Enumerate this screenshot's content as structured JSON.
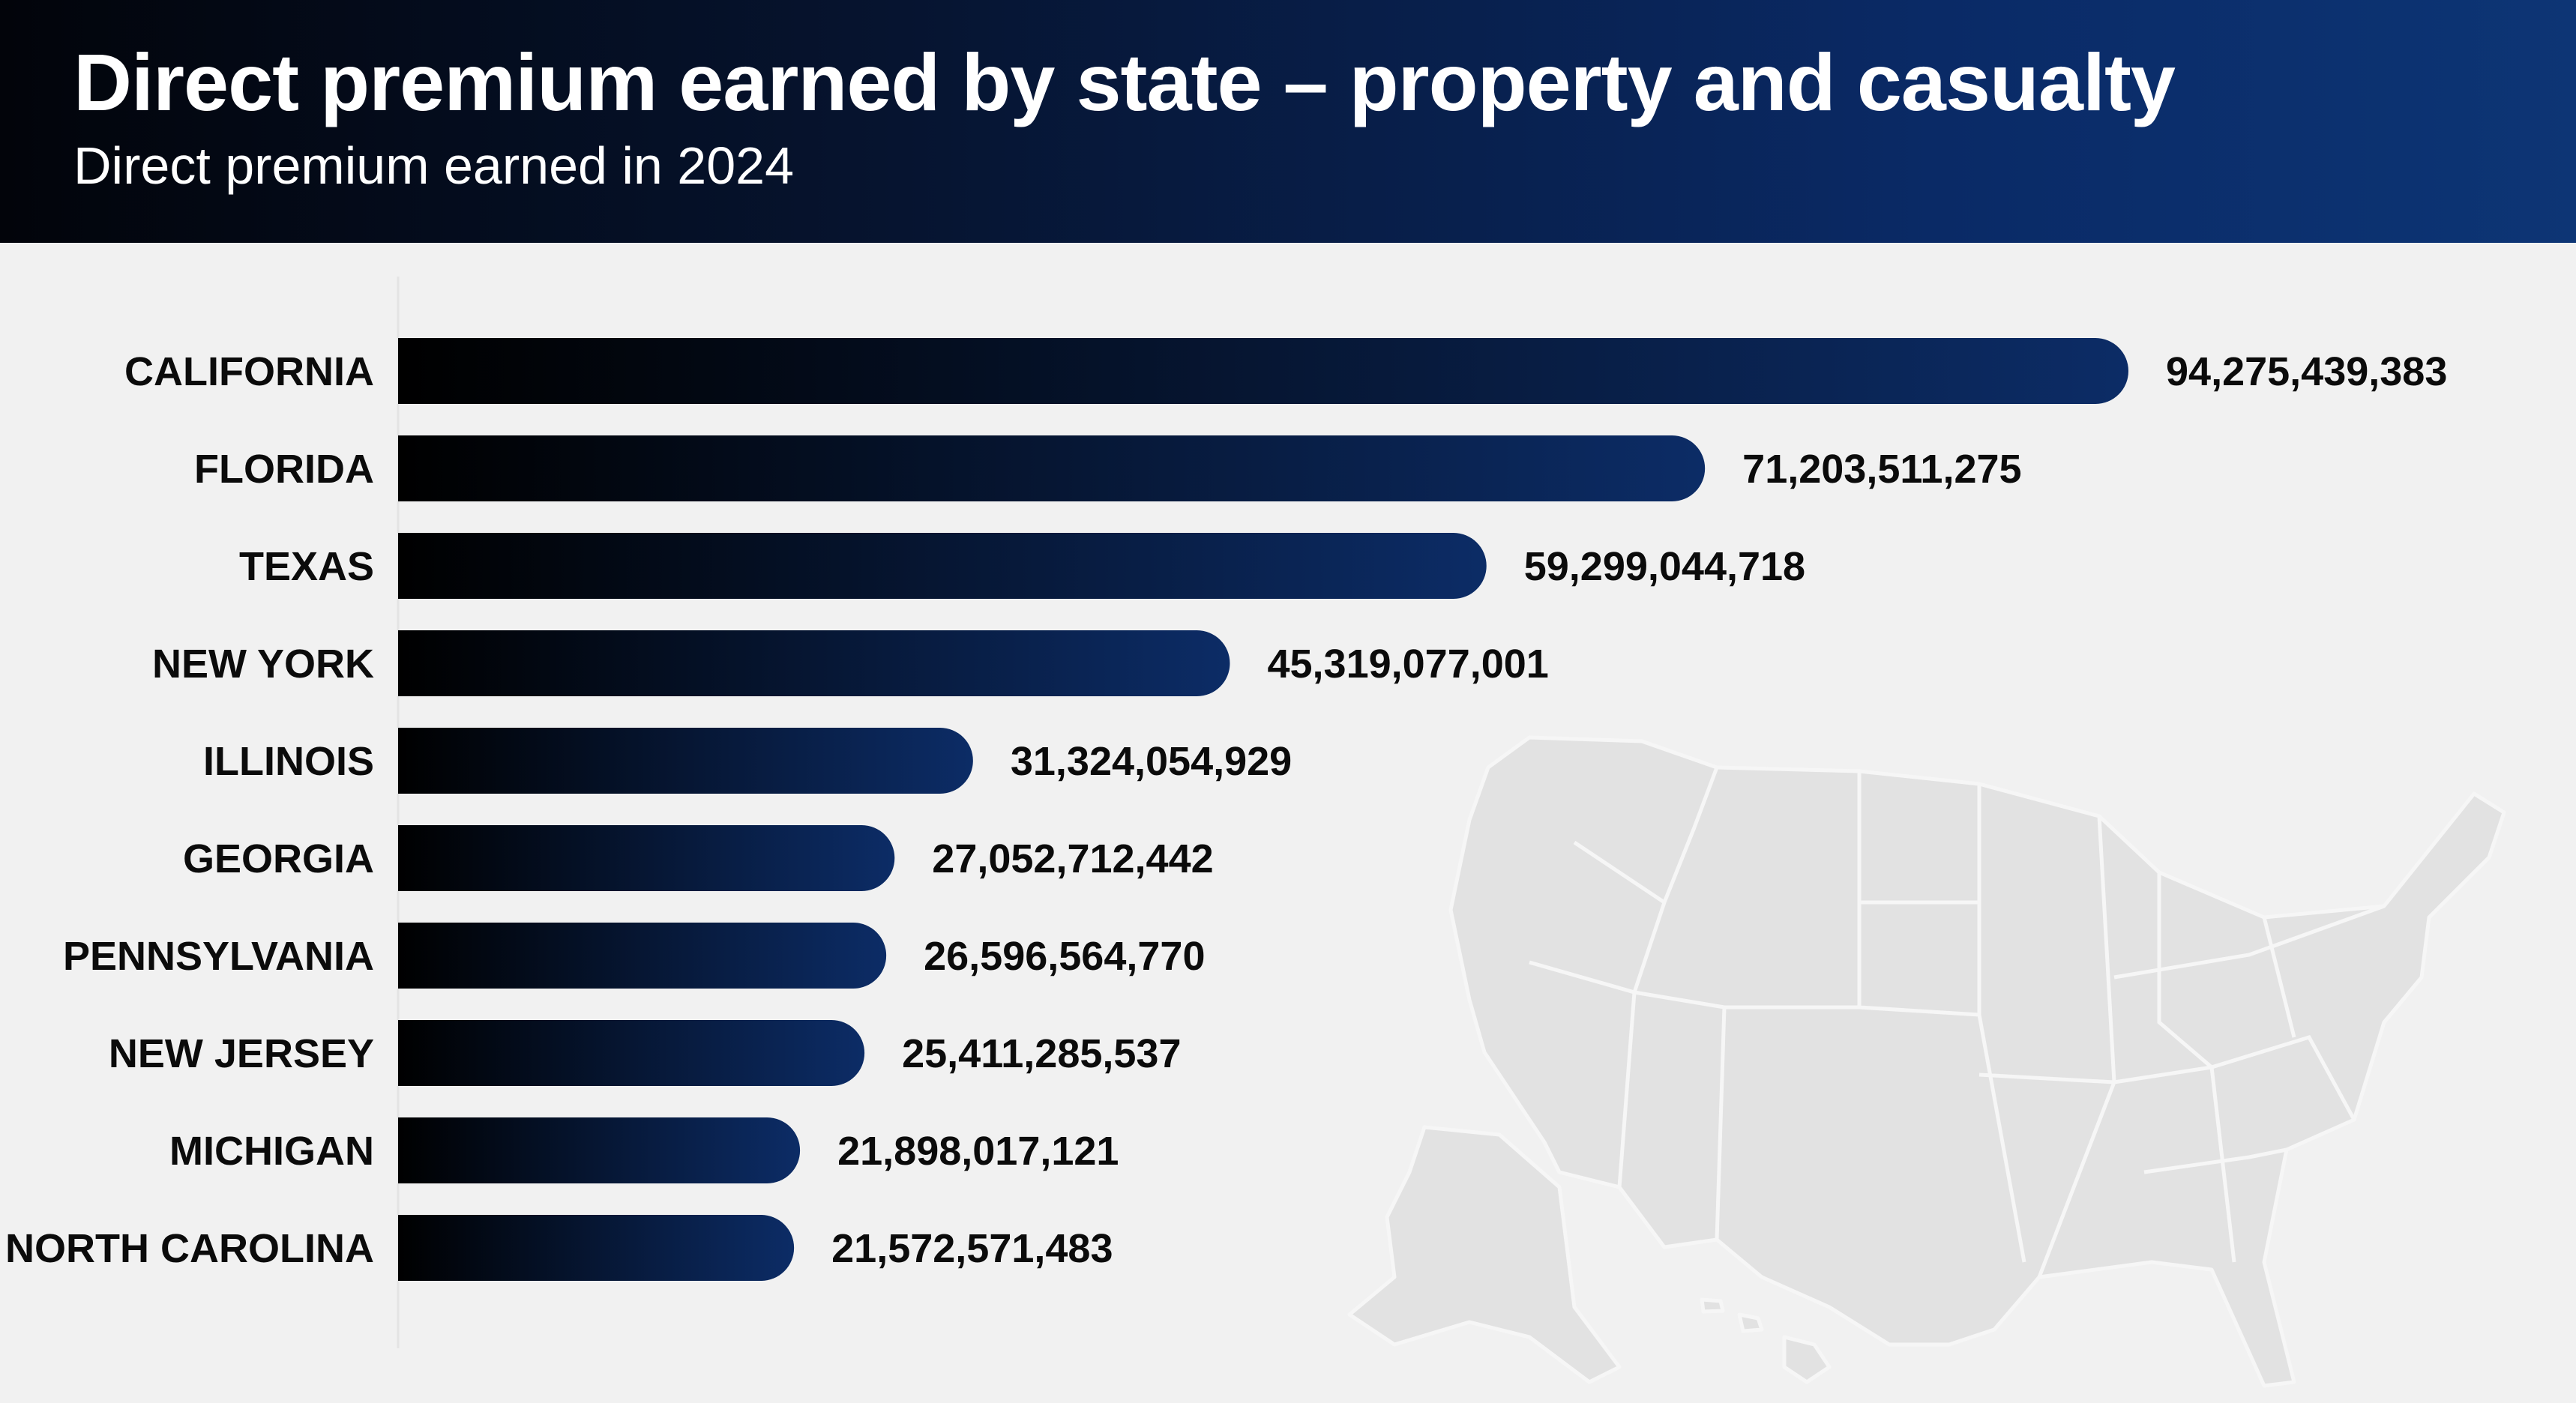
{
  "header": {
    "title": "Direct premium earned by state – property and casualty",
    "subtitle": "Direct premium earned in 2024"
  },
  "colors": {
    "header_start": "#02040a",
    "header_end": "#0d3575",
    "bar_start": "#000000",
    "bar_end": "#0c2c66",
    "background": "#f1f1f1",
    "map_fill": "#e2e2e2",
    "map_border": "#f6f6f6"
  },
  "background_icon": "us-map-icon",
  "chart_data": {
    "type": "bar",
    "orientation": "horizontal",
    "title": "Direct premium earned by state – property and casualty",
    "subtitle": "Direct premium earned in 2024",
    "xlabel": "",
    "ylabel": "",
    "grid": false,
    "legend": "none",
    "xlim": [
      0,
      94275439383
    ],
    "categories": [
      "CALIFORNIA",
      "FLORIDA",
      "TEXAS",
      "NEW YORK",
      "ILLINOIS",
      "GEORGIA",
      "PENNSYLVANIA",
      "NEW JERSEY",
      "MICHIGAN",
      "NORTH CAROLINA"
    ],
    "values": [
      94275439383,
      71203511275,
      59299044718,
      45319077001,
      31324054929,
      27052712442,
      26596564770,
      25411285537,
      21898017121,
      21572571483
    ],
    "value_labels": [
      "94,275,439,383",
      "71,203,511,275",
      "59,299,044,718",
      "45,319,077,001",
      "31,324,054,929",
      "27,052,712,442",
      "26,596,564,770",
      "25,411,285,537",
      "21,898,017,121",
      "21,572,571,483"
    ]
  }
}
